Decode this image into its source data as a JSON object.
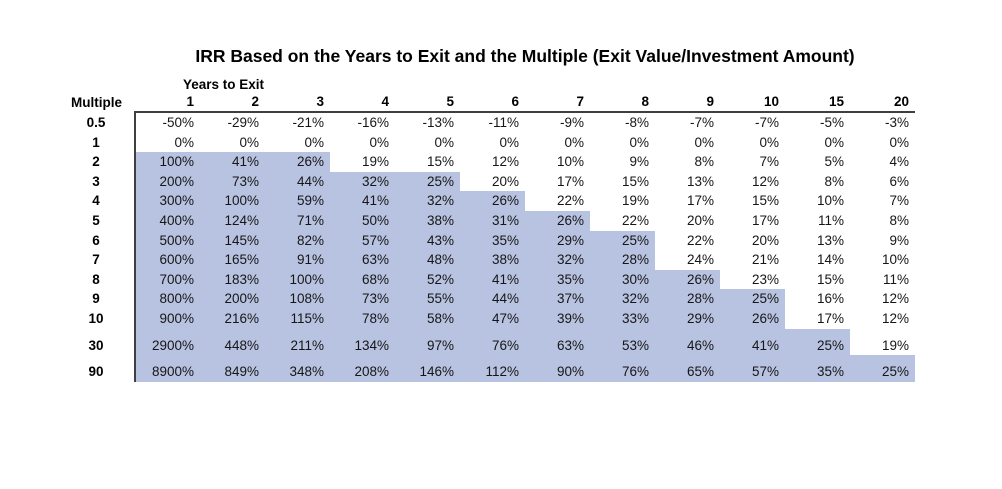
{
  "title": "IRR Based on the Years to Exit and the Multiple (Exit Value/Investment Amount)",
  "colors": {
    "highlight_fill": "#b8c3e1",
    "border": "#3f3f3f",
    "text": "#161616"
  },
  "chart_data": {
    "type": "table",
    "title": "IRR Based on the Years to Exit and the Multiple (Exit Value/Investment Amount)",
    "xlabel": "Years to Exit",
    "ylabel": "Multiple",
    "columns": [
      "1",
      "2",
      "3",
      "4",
      "5",
      "6",
      "7",
      "8",
      "9",
      "10",
      "15",
      "20"
    ],
    "highlight_note": "cells shaded light blue form a stair-step region of higher IRRs (approx. IRR >= 25%)",
    "rows": [
      {
        "label": "0.5",
        "highlight_cols": 0,
        "values": [
          "-50%",
          "-29%",
          "-21%",
          "-16%",
          "-13%",
          "-11%",
          "-9%",
          "-8%",
          "-7%",
          "-7%",
          "-5%",
          "-3%"
        ]
      },
      {
        "label": "1",
        "highlight_cols": 0,
        "values": [
          "0%",
          "0%",
          "0%",
          "0%",
          "0%",
          "0%",
          "0%",
          "0%",
          "0%",
          "0%",
          "0%",
          "0%"
        ]
      },
      {
        "label": "2",
        "highlight_cols": 3,
        "values": [
          "100%",
          "41%",
          "26%",
          "19%",
          "15%",
          "12%",
          "10%",
          "9%",
          "8%",
          "7%",
          "5%",
          "4%"
        ]
      },
      {
        "label": "3",
        "highlight_cols": 5,
        "values": [
          "200%",
          "73%",
          "44%",
          "32%",
          "25%",
          "20%",
          "17%",
          "15%",
          "13%",
          "12%",
          "8%",
          "6%"
        ]
      },
      {
        "label": "4",
        "highlight_cols": 6,
        "values": [
          "300%",
          "100%",
          "59%",
          "41%",
          "32%",
          "26%",
          "22%",
          "19%",
          "17%",
          "15%",
          "10%",
          "7%"
        ]
      },
      {
        "label": "5",
        "highlight_cols": 7,
        "values": [
          "400%",
          "124%",
          "71%",
          "50%",
          "38%",
          "31%",
          "26%",
          "22%",
          "20%",
          "17%",
          "11%",
          "8%"
        ]
      },
      {
        "label": "6",
        "highlight_cols": 8,
        "values": [
          "500%",
          "145%",
          "82%",
          "57%",
          "43%",
          "35%",
          "29%",
          "25%",
          "22%",
          "20%",
          "13%",
          "9%"
        ]
      },
      {
        "label": "7",
        "highlight_cols": 8,
        "values": [
          "600%",
          "165%",
          "91%",
          "63%",
          "48%",
          "38%",
          "32%",
          "28%",
          "24%",
          "21%",
          "14%",
          "10%"
        ]
      },
      {
        "label": "8",
        "highlight_cols": 9,
        "values": [
          "700%",
          "183%",
          "100%",
          "68%",
          "52%",
          "41%",
          "35%",
          "30%",
          "26%",
          "23%",
          "15%",
          "11%"
        ]
      },
      {
        "label": "9",
        "highlight_cols": 10,
        "values": [
          "800%",
          "200%",
          "108%",
          "73%",
          "55%",
          "44%",
          "37%",
          "32%",
          "28%",
          "25%",
          "16%",
          "12%"
        ]
      },
      {
        "label": "10",
        "highlight_cols": 10,
        "values": [
          "900%",
          "216%",
          "115%",
          "78%",
          "58%",
          "47%",
          "39%",
          "33%",
          "29%",
          "26%",
          "17%",
          "12%"
        ]
      },
      {
        "label": "30",
        "highlight_cols": 11,
        "spacer_before_highlight_cols": 11,
        "values": [
          "2900%",
          "448%",
          "211%",
          "134%",
          "97%",
          "76%",
          "63%",
          "53%",
          "46%",
          "41%",
          "25%",
          "19%"
        ]
      },
      {
        "label": "90",
        "highlight_cols": 12,
        "spacer_before_highlight_cols": 12,
        "values": [
          "8900%",
          "849%",
          "348%",
          "208%",
          "146%",
          "112%",
          "90%",
          "76%",
          "65%",
          "57%",
          "35%",
          "25%"
        ]
      }
    ]
  },
  "labels": {
    "years_to_exit": "Years to Exit",
    "multiple": "Multiple"
  }
}
